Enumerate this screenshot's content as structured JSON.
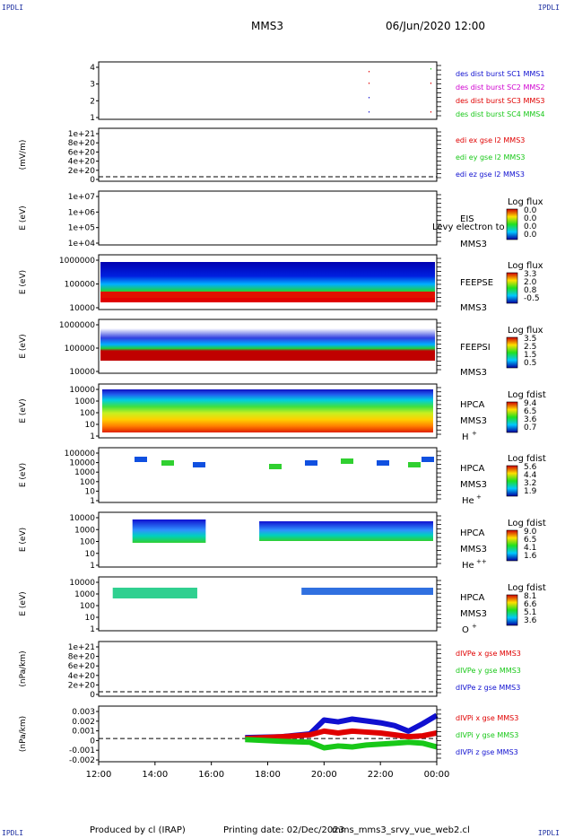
{
  "corners": {
    "tl": "IPDLI",
    "tr": "IPDLI",
    "bl": "IPDLI",
    "br": "IPDLI"
  },
  "header": {
    "spacecraft": "MMS3",
    "datetime": "06/Jun/2020 12:00"
  },
  "footer": {
    "producer": "Produced by cl (IRAP)",
    "printed": "Printing date: 02/Dec/2023",
    "file": "mms_mms3_srvy_vue_web2.cl"
  },
  "colors": {
    "red": "#e00000",
    "green": "#18c818",
    "blue": "#1010d0",
    "magenta": "#d000d0",
    "navy": "#1d2fa0"
  },
  "chart_data": [
    {
      "type": "scatter",
      "panel": "burst",
      "yticks": [
        "1",
        "2",
        "3",
        "4"
      ],
      "legend": [
        {
          "text": "des dist burst SC1 MMS1",
          "color": "#1010d0"
        },
        {
          "text": "des dist burst SC2 MMS2",
          "color": "#d000d0"
        },
        {
          "text": "des dist burst SC3 MMS3",
          "color": "#e00000"
        },
        {
          "text": "des dist burst SC4 MMS4",
          "color": "#18c818"
        }
      ]
    },
    {
      "type": "line",
      "panel": "edi",
      "ylabel": "(mV/m)",
      "yticks": [
        "0",
        "2e+20",
        "4e+20",
        "6e+20",
        "8e+20",
        "1e+21"
      ],
      "legend": [
        {
          "text": "edi ex gse l2 MMS3",
          "color": "#e00000"
        },
        {
          "text": "edi ey gse l2 MMS3",
          "color": "#18c818"
        },
        {
          "text": "edi ez gse l2 MMS3",
          "color": "#1010d0"
        }
      ]
    },
    {
      "type": "heatmap",
      "panel": "eis",
      "ylabel": "E (eV)",
      "yticks": [
        "1e+04",
        "1e+05",
        "1e+06",
        "1e+07"
      ],
      "instrument": "EIS",
      "craft": "MMS3",
      "overlay": "Levy electron to",
      "cbar_title": "Log flux",
      "cbar_ticks": [
        "0.0",
        "0.0",
        "0.0",
        "0.0"
      ]
    },
    {
      "type": "heatmap",
      "panel": "feeps-e",
      "ylabel": "E (eV)",
      "yticks": [
        "10000",
        "100000",
        "1000000"
      ],
      "instrument": "FEEPSE",
      "craft": "MMS3",
      "cbar_title": "Log flux",
      "cbar_ticks": [
        "3.3",
        "2.0",
        "0.8",
        "-0.5"
      ]
    },
    {
      "type": "heatmap",
      "panel": "feeps-i",
      "ylabel": "E (eV)",
      "yticks": [
        "10000",
        "100000",
        "1000000"
      ],
      "instrument": "FEEPSI",
      "craft": "MMS3",
      "cbar_title": "Log flux",
      "cbar_ticks": [
        "3.5",
        "2.5",
        "1.5",
        "0.5"
      ]
    },
    {
      "type": "heatmap",
      "panel": "hpca-h",
      "ylabel": "E (eV)",
      "yticks": [
        "1",
        "10",
        "100",
        "1000",
        "10000"
      ],
      "instrument": "HPCA",
      "craft": "MMS3",
      "species": "H",
      "charge": "+",
      "cbar_title": "Log fdist",
      "cbar_ticks": [
        "9.4",
        "6.5",
        "3.6",
        "0.7"
      ]
    },
    {
      "type": "heatmap",
      "panel": "hpca-he",
      "ylabel": "E (eV)",
      "yticks": [
        "1",
        "10",
        "100",
        "1000",
        "10000",
        "100000"
      ],
      "instrument": "HPCA",
      "craft": "MMS3",
      "species": "He",
      "charge": "+",
      "cbar_title": "Log fdist",
      "cbar_ticks": [
        "5.6",
        "4.4",
        "3.2",
        "1.9"
      ]
    },
    {
      "type": "heatmap",
      "panel": "hpca-hepp",
      "ylabel": "E (eV)",
      "yticks": [
        "1",
        "10",
        "100",
        "1000",
        "10000"
      ],
      "instrument": "HPCA",
      "craft": "MMS3",
      "species": "He",
      "charge": "++",
      "cbar_title": "Log fdist",
      "cbar_ticks": [
        "9.0",
        "6.5",
        "4.1",
        "1.6"
      ]
    },
    {
      "type": "heatmap",
      "panel": "hpca-o",
      "ylabel": "E (eV)",
      "yticks": [
        "1",
        "10",
        "100",
        "1000",
        "10000"
      ],
      "instrument": "HPCA",
      "craft": "MMS3",
      "species": "O",
      "charge": "+",
      "cbar_title": "Log fdist",
      "cbar_ticks": [
        "8.1",
        "6.6",
        "5.1",
        "3.6"
      ]
    },
    {
      "type": "line",
      "panel": "divpe",
      "ylabel": "(nPa/km)",
      "yticks": [
        "0",
        "2e+20",
        "4e+20",
        "6e+20",
        "8e+20",
        "1e+21"
      ],
      "legend": [
        {
          "text": "dIVPe x gse MMS3",
          "color": "#e00000"
        },
        {
          "text": "dIVPe y gse MMS3",
          "color": "#18c818"
        },
        {
          "text": "dIVPe z gse MMS3",
          "color": "#1010d0"
        }
      ]
    },
    {
      "type": "line",
      "panel": "divpi",
      "ylabel": "(nPa/km)",
      "yticks": [
        "-0.002",
        "-0.001",
        "0",
        "0.001",
        "0.002",
        "0.003"
      ],
      "ylim": [
        -0.0025,
        0.0035
      ],
      "legend": [
        {
          "text": "dIVPi x gse MMS3",
          "color": "#e00000"
        },
        {
          "text": "dIVPi y gse MMS3",
          "color": "#18c818"
        },
        {
          "text": "dIVPi z gse MMS3",
          "color": "#1010d0"
        }
      ],
      "series": [
        {
          "color": "#1010d0",
          "x": [
            17.2,
            18.5,
            19.5,
            20.0,
            20.5,
            21.0,
            21.5,
            22.0,
            22.5,
            23.0,
            23.5,
            24.0
          ],
          "values": [
            0.0001,
            0.0002,
            0.0005,
            0.002,
            0.0018,
            0.0021,
            0.0019,
            0.0017,
            0.0014,
            0.0008,
            0.0016,
            0.0025
          ]
        },
        {
          "color": "#e00000",
          "x": [
            17.2,
            18.5,
            19.5,
            20.0,
            20.5,
            21.0,
            21.5,
            22.0,
            22.5,
            23.0,
            23.5,
            24.0
          ],
          "values": [
            0.0,
            0.0002,
            0.0004,
            0.0008,
            0.0006,
            0.0008,
            0.0007,
            0.0006,
            0.0004,
            0.0002,
            0.0003,
            0.0006
          ]
        },
        {
          "color": "#18c818",
          "x": [
            17.2,
            18.5,
            19.5,
            20.0,
            20.5,
            21.0,
            21.5,
            22.0,
            22.5,
            23.0,
            23.5,
            24.0
          ],
          "values": [
            -0.0001,
            -0.0003,
            -0.0004,
            -0.001,
            -0.0008,
            -0.0009,
            -0.0007,
            -0.0006,
            -0.0005,
            -0.0004,
            -0.0005,
            -0.0009
          ]
        }
      ]
    }
  ],
  "xaxis": {
    "ticks": [
      "12:00",
      "14:00",
      "16:00",
      "18:00",
      "20:00",
      "22:00",
      "00:00"
    ],
    "range_hours": [
      12,
      24
    ]
  }
}
